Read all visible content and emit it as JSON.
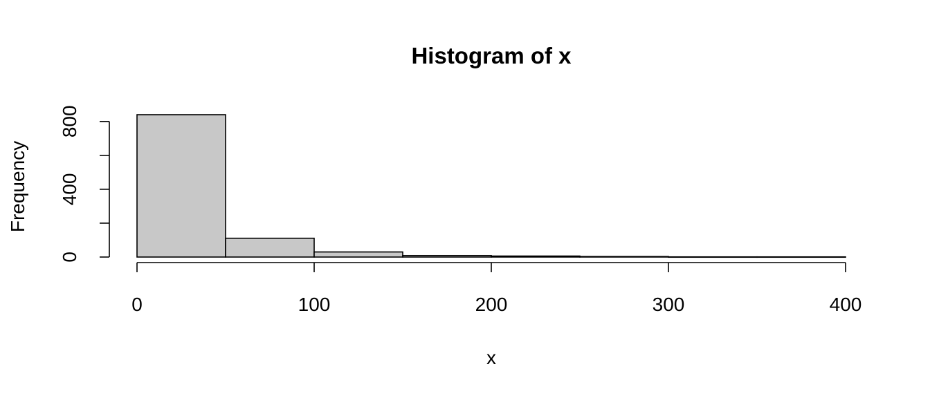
{
  "chart_data": {
    "type": "bar",
    "title": "Histogram of x",
    "xlabel": "x",
    "ylabel": "Frequency",
    "bins": [
      {
        "start": 0,
        "end": 50,
        "count": 840
      },
      {
        "start": 50,
        "end": 100,
        "count": 111
      },
      {
        "start": 100,
        "end": 150,
        "count": 30
      },
      {
        "start": 150,
        "end": 200,
        "count": 9
      },
      {
        "start": 200,
        "end": 250,
        "count": 6
      },
      {
        "start": 250,
        "end": 300,
        "count": 3
      },
      {
        "start": 300,
        "end": 350,
        "count": 1
      },
      {
        "start": 350,
        "end": 400,
        "count": 1
      }
    ],
    "xlim": [
      0,
      400
    ],
    "ylim": [
      0,
      840
    ],
    "x_ticks": [
      0,
      100,
      200,
      300,
      400
    ],
    "y_ticks": [
      0,
      200,
      400,
      600,
      800
    ],
    "y_tick_labels": [
      "0",
      "",
      "400",
      "",
      "800"
    ],
    "grid": false,
    "legend": "none"
  }
}
